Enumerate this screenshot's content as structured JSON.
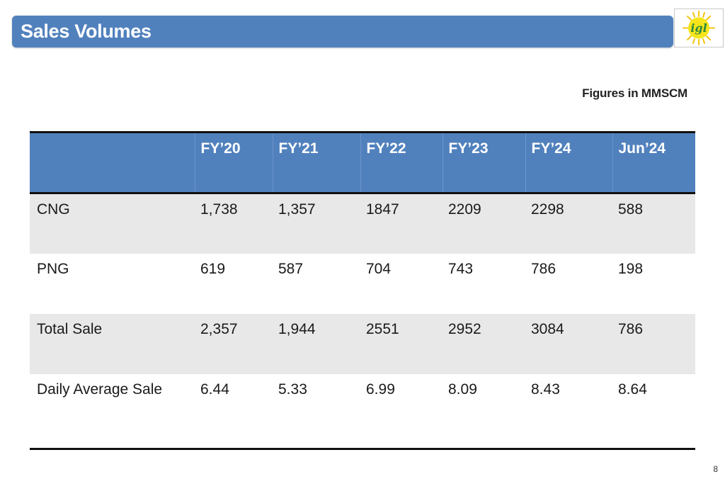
{
  "slide": {
    "title": "Sales Volumes",
    "units_note": "Figures in MMSCM",
    "page_number": "8",
    "logo": {
      "text": "igl",
      "icon": "sun-logo-icon",
      "colors": {
        "sun": "#f6e51a",
        "text": "#2e8a3c",
        "rays": "#f3c414"
      }
    }
  },
  "table": {
    "columns": [
      "",
      "FY’20",
      "FY’21",
      "FY’22",
      "FY’23",
      "FY’24",
      "Jun’24"
    ],
    "rows": [
      {
        "label": "CNG",
        "values": [
          "1,738",
          "1,357",
          "1847",
          "2209",
          "2298",
          "588"
        ]
      },
      {
        "label": "PNG",
        "values": [
          "619",
          "587",
          "704",
          "743",
          "786",
          "198"
        ]
      },
      {
        "label": "Total Sale",
        "values": [
          "2,357",
          "1,944",
          "2551",
          "2952",
          "3084",
          "786"
        ]
      },
      {
        "label": "Daily Average Sale",
        "values": [
          "6.44",
          "5.33",
          "6.99",
          "8.09",
          "8.43",
          "8.64"
        ]
      }
    ]
  },
  "colors": {
    "header_blue": "#5181bd",
    "row_shade": "#e8e8e8",
    "rule": "#111111"
  }
}
